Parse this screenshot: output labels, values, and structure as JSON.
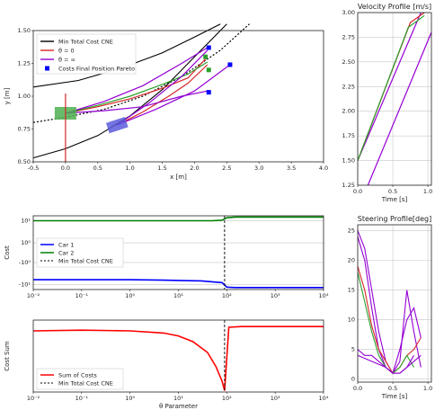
{
  "chart_data": [
    {
      "id": "trajectories",
      "type": "line",
      "xlabel": "x [m]",
      "ylabel": "y [m]",
      "xlim": [
        -0.5,
        4.0
      ],
      "ylim": [
        0.5,
        1.5
      ],
      "xticks": [
        "-0.5",
        "0.0",
        "0.5",
        "1.0",
        "1.5",
        "2.0",
        "2.5",
        "3.0",
        "3.5",
        "4.0"
      ],
      "yticks": [
        "0.50",
        "0.75",
        "1.00",
        "1.25",
        "1.50"
      ],
      "grid": false,
      "legend_position": "top-left",
      "legend": [
        {
          "label": "Min Total Cost CNE",
          "color": "#000000",
          "kind": "line"
        },
        {
          "label": "θ = 0",
          "color": "#d62728",
          "kind": "line"
        },
        {
          "label": "θ = ∞",
          "color": "#9400d3",
          "kind": "line"
        },
        {
          "label": "Costs Final Position Pareto",
          "color": "#0000ff",
          "kind": "square"
        }
      ],
      "series": [
        {
          "role": "track-inner",
          "color": "#000000",
          "x": [
            -0.5,
            0,
            0.5,
            1,
            1.5,
            2,
            2.5
          ],
          "y": [
            0.53,
            0.6,
            0.7,
            0.85,
            1.05,
            1.3,
            1.55
          ]
        },
        {
          "role": "track-outer",
          "color": "#000000",
          "x": [
            -0.5,
            0.2,
            0.9,
            1.5,
            2,
            2.4
          ],
          "y": [
            1.07,
            1.12,
            1.22,
            1.33,
            1.45,
            1.55
          ]
        },
        {
          "role": "centerline",
          "color": "#000000",
          "dashed": true,
          "x": [
            -0.5,
            0,
            0.6,
            1.2,
            1.8,
            2.4,
            2.85
          ],
          "y": [
            0.8,
            0.84,
            0.9,
            1.0,
            1.15,
            1.35,
            1.55
          ]
        },
        {
          "role": "car1",
          "color": "#d62728",
          "x": [
            0,
            0.5,
            1,
            1.5,
            1.9,
            2.2
          ],
          "y": [
            0.87,
            0.92,
            0.98,
            1.06,
            1.14,
            1.3
          ]
        },
        {
          "role": "car1",
          "color": "#d62728",
          "x": [
            0.8,
            1.2,
            1.6,
            1.9,
            2.2
          ],
          "y": [
            0.78,
            0.88,
            1.0,
            1.1,
            1.24
          ]
        },
        {
          "role": "car1",
          "color": "#2ca02c",
          "x": [
            0,
            0.5,
            1,
            1.5,
            1.9,
            2.2
          ],
          "y": [
            0.87,
            0.93,
            1.0,
            1.09,
            1.17,
            1.26
          ]
        },
        {
          "role": "car2",
          "color": "#9400d3",
          "x": [
            0,
            0.6,
            1.2,
            1.8,
            2.2
          ],
          "y": [
            0.87,
            0.89,
            0.92,
            1.0,
            1.04
          ]
        },
        {
          "role": "car2",
          "color": "#9400d3",
          "x": [
            0,
            0.6,
            1.2,
            1.8,
            2.2
          ],
          "y": [
            0.87,
            0.96,
            1.08,
            1.25,
            1.37
          ]
        },
        {
          "role": "car2",
          "color": "#9400d3",
          "x": [
            0.8,
            1.4,
            2.0,
            2.55
          ],
          "y": [
            0.78,
            0.9,
            1.04,
            1.24
          ]
        },
        {
          "role": "car2",
          "color": "#9400d3",
          "x": [
            0.8,
            1.3,
            1.8,
            2.2
          ],
          "y": [
            0.78,
            0.95,
            1.15,
            1.35
          ]
        }
      ],
      "markers": [
        {
          "x": 2.22,
          "y": 1.37,
          "color": "#0000ff"
        },
        {
          "x": 2.22,
          "y": 1.03,
          "color": "#0000ff"
        },
        {
          "x": 2.55,
          "y": 1.24,
          "color": "#0000ff"
        },
        {
          "x": 2.17,
          "y": 1.3,
          "color": "#2ca02c"
        },
        {
          "x": 2.22,
          "y": 1.2,
          "color": "#2ca02c"
        }
      ],
      "cars": [
        {
          "x": 0,
          "y": 0.87,
          "color": "#4caf50"
        },
        {
          "x": 0.8,
          "y": 0.78,
          "color": "#5b5bdc"
        }
      ],
      "vline": {
        "x": 0,
        "color": "#d62728"
      }
    },
    {
      "id": "velocity",
      "type": "line",
      "title": "Velocity Profile [m/s]",
      "xlabel": "Time [s]",
      "xlim": [
        0,
        1.05
      ],
      "ylim": [
        1.25,
        3.0
      ],
      "xticks": [
        "0.0",
        "0.5",
        "1.0"
      ],
      "yticks": [
        "1.25",
        "1.50",
        "1.75",
        "2.00",
        "2.25",
        "2.50",
        "2.75",
        "3.00"
      ],
      "grid": true,
      "series": [
        {
          "color": "#9400d3",
          "x": [
            0,
            0.9
          ],
          "y": [
            1.5,
            3.0
          ]
        },
        {
          "color": "#9400d3",
          "x": [
            0,
            1.05
          ],
          "y": [
            1.0,
            2.8
          ]
        },
        {
          "color": "#d62728",
          "x": [
            0,
            0.75,
            0.95
          ],
          "y": [
            1.5,
            2.9,
            3.0
          ]
        },
        {
          "color": "#2ca02c",
          "x": [
            0,
            0.72,
            0.95
          ],
          "y": [
            1.5,
            2.85,
            2.97
          ]
        }
      ]
    },
    {
      "id": "cost",
      "type": "line",
      "ylabel": "Cost",
      "xscale": "log",
      "xlim": [
        0.01,
        10000
      ],
      "ylim": [
        -1.5,
        1.5
      ],
      "xticks": [
        "10⁻²",
        "10⁻¹",
        "10⁰",
        "10¹",
        "10²",
        "10³",
        "10⁴"
      ],
      "yticks": [
        "10¹",
        "10⁰",
        "-10⁰",
        "-10¹"
      ],
      "grid": true,
      "legend_position": "center-left",
      "legend": [
        {
          "label": "Car 1",
          "color": "#0000ff",
          "kind": "line"
        },
        {
          "label": "Car 2",
          "color": "#008000",
          "kind": "line"
        },
        {
          "label": "Min Total Cost CNE",
          "color": "#000000",
          "kind": "dashed"
        }
      ],
      "series": [
        {
          "name": "Car 1",
          "color": "#0000ff",
          "x": [
            0.01,
            0.1,
            1,
            5,
            10,
            30,
            60,
            80,
            100,
            150,
            1000,
            10000
          ],
          "y": [
            -1.1,
            -1.1,
            -1.1,
            -1.12,
            -1.13,
            -1.15,
            -1.2,
            -1.22,
            -1.4,
            -1.42,
            -1.42,
            -1.42
          ]
        },
        {
          "name": "Car 2",
          "color": "#008000",
          "x": [
            0.01,
            1,
            50,
            80,
            100,
            150,
            1000,
            10000
          ],
          "y": [
            1.3,
            1.3,
            1.3,
            1.32,
            1.42,
            1.45,
            1.45,
            1.45
          ]
        }
      ],
      "vline": {
        "x": 90,
        "color": "#000000",
        "dashed": true
      }
    },
    {
      "id": "costsum",
      "type": "line",
      "ylabel": "Cost Sum",
      "xlabel": "θ Parameter",
      "xscale": "log",
      "xlim": [
        0.01,
        10000
      ],
      "ylim": [
        0,
        1
      ],
      "xticks": [
        "10⁻²",
        "10⁻¹",
        "10⁰",
        "10¹",
        "10²",
        "10³",
        "10⁴"
      ],
      "grid": false,
      "legend_position": "lower-left",
      "legend": [
        {
          "label": "Sum of Costs",
          "color": "#ff0000",
          "kind": "line"
        },
        {
          "label": "Min Total Cost CNE",
          "color": "#000000",
          "kind": "dashed"
        }
      ],
      "series": [
        {
          "name": "Sum of Costs",
          "color": "#ff0000",
          "x": [
            0.01,
            0.1,
            1,
            5,
            10,
            20,
            40,
            60,
            80,
            90,
            110,
            200,
            1000,
            10000
          ],
          "y": [
            0.85,
            0.86,
            0.85,
            0.82,
            0.78,
            0.7,
            0.55,
            0.35,
            0.15,
            0.02,
            0.9,
            0.91,
            0.91,
            0.91
          ]
        }
      ],
      "vline": {
        "x": 90,
        "color": "#000000",
        "dashed": true
      }
    },
    {
      "id": "steering",
      "type": "line",
      "title": "Steering Profile[deg]",
      "xlabel": "Time [s]",
      "xlim": [
        0,
        1.05
      ],
      "ylim": [
        -0.5,
        26
      ],
      "xticks": [
        "0.0",
        "0.5",
        "1.0"
      ],
      "yticks": [
        "0",
        "5",
        "10",
        "15",
        "20",
        "25"
      ],
      "grid": true,
      "series": [
        {
          "color": "#9400d3",
          "x": [
            0,
            0.1,
            0.2,
            0.3,
            0.4,
            0.5,
            0.6,
            0.7,
            0.8,
            0.9
          ],
          "y": [
            25,
            22,
            15,
            8,
            3,
            1,
            5,
            10,
            12,
            7
          ]
        },
        {
          "color": "#9400d3",
          "x": [
            0,
            0.1,
            0.2,
            0.3,
            0.4,
            0.5,
            0.6,
            0.7,
            0.8,
            0.9
          ],
          "y": [
            24,
            20,
            12,
            5,
            2,
            1,
            3,
            15,
            8,
            2
          ]
        },
        {
          "color": "#d62728",
          "x": [
            0,
            0.1,
            0.2,
            0.3,
            0.4,
            0.5,
            0.6,
            0.7,
            0.8,
            0.9
          ],
          "y": [
            19,
            15,
            9,
            5,
            3,
            1,
            2,
            4,
            5,
            7
          ]
        },
        {
          "color": "#2ca02c",
          "x": [
            0,
            0.1,
            0.2,
            0.3,
            0.4,
            0.5,
            0.6,
            0.7,
            0.8
          ],
          "y": [
            18,
            13,
            8,
            4,
            2,
            1,
            2,
            4,
            2
          ]
        },
        {
          "color": "#9400d3",
          "x": [
            0,
            0.1,
            0.2,
            0.3,
            0.4,
            0.5,
            0.6,
            0.7,
            0.8,
            0.9
          ],
          "y": [
            5,
            4,
            4,
            3,
            2,
            1,
            1,
            2,
            3,
            4
          ]
        },
        {
          "color": "#9400d3",
          "x": [
            0,
            0.2,
            0.4,
            0.5,
            0.6,
            0.7,
            0.8
          ],
          "y": [
            4,
            3,
            2,
            1,
            1,
            2,
            4
          ]
        }
      ]
    }
  ]
}
